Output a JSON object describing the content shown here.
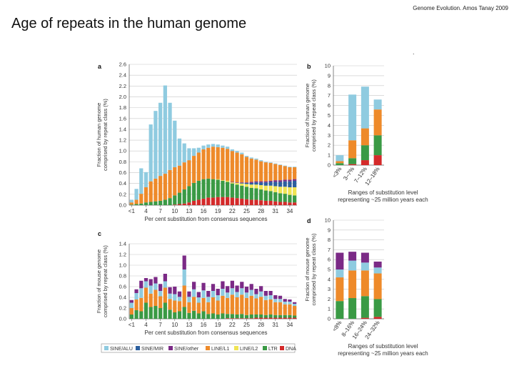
{
  "slide": {
    "title": "Age of repeats in the human genome",
    "credit": "Genome Evolution. Amos Tanay 2009",
    "dot": "."
  },
  "colors": {
    "SINE/ALU": "#8fcbe0",
    "SINE/MIR": "#2c5f9e",
    "SINE/other": "#7b2a86",
    "LINE/L1": "#ee8a2a",
    "LINE/L2": "#f0e454",
    "LTR": "#3a9a45",
    "DNA": "#d42a2a"
  },
  "chart_data": [
    {
      "panel": "a",
      "type": "bar",
      "stacked": true,
      "ylabel": "Fraction of human genome comprised by repeat class (%)",
      "xlabel": "Per cent substitution from consensus sequences",
      "ylim": [
        0,
        2.6
      ],
      "yticks": [
        "0.0",
        "0.2",
        "0.4",
        "0.6",
        "0.8",
        "1.0",
        "1.2",
        "1.4",
        "1.6",
        "1.8",
        "2.0",
        "2.2",
        "2.4",
        "2.6"
      ],
      "xticks": [
        "<1",
        "4",
        "7",
        "10",
        "13",
        "16",
        "19",
        "22",
        "25",
        "28",
        "31",
        "34"
      ],
      "grid": true,
      "series": [
        {
          "key": "DNA",
          "values": [
            0,
            0,
            0,
            0,
            0,
            0,
            0,
            0,
            0,
            0.01,
            0.02,
            0.03,
            0.05,
            0.08,
            0.1,
            0.12,
            0.14,
            0.14,
            0.15,
            0.15,
            0.15,
            0.14,
            0.13,
            0.12,
            0.11,
            0.1,
            0.1,
            0.09,
            0.08,
            0.08,
            0.07,
            0.06,
            0.06,
            0.05,
            0.05
          ]
        },
        {
          "key": "LTR",
          "values": [
            0.01,
            0.02,
            0.03,
            0.05,
            0.06,
            0.07,
            0.08,
            0.1,
            0.13,
            0.17,
            0.21,
            0.26,
            0.3,
            0.33,
            0.35,
            0.36,
            0.35,
            0.34,
            0.32,
            0.3,
            0.28,
            0.26,
            0.25,
            0.24,
            0.23,
            0.22,
            0.21,
            0.2,
            0.19,
            0.18,
            0.17,
            0.16,
            0.15,
            0.14,
            0.13
          ]
        },
        {
          "key": "LINE/L2",
          "values": [
            0,
            0,
            0,
            0,
            0,
            0,
            0,
            0,
            0,
            0,
            0,
            0,
            0,
            0,
            0,
            0,
            0,
            0,
            0.01,
            0.01,
            0.02,
            0.02,
            0.03,
            0.04,
            0.05,
            0.06,
            0.07,
            0.08,
            0.09,
            0.1,
            0.11,
            0.12,
            0.13,
            0.14,
            0.15
          ]
        },
        {
          "key": "SINE/MIR",
          "values": [
            0,
            0,
            0,
            0,
            0,
            0,
            0,
            0,
            0,
            0,
            0,
            0,
            0,
            0,
            0,
            0,
            0,
            0,
            0,
            0,
            0,
            0,
            0,
            0.01,
            0.02,
            0.03,
            0.04,
            0.05,
            0.06,
            0.07,
            0.08,
            0.09,
            0.1,
            0.11,
            0.12
          ]
        },
        {
          "key": "SINE/other",
          "values": [
            0,
            0,
            0,
            0,
            0,
            0,
            0,
            0,
            0,
            0,
            0,
            0,
            0,
            0,
            0,
            0,
            0,
            0,
            0,
            0,
            0,
            0.01,
            0.01,
            0.01,
            0.01,
            0.02,
            0.02,
            0.02,
            0.02,
            0.02,
            0.03,
            0.03,
            0.03,
            0.03,
            0.03
          ]
        },
        {
          "key": "LINE/L1",
          "values": [
            0.04,
            0.08,
            0.18,
            0.28,
            0.38,
            0.42,
            0.46,
            0.48,
            0.52,
            0.52,
            0.5,
            0.5,
            0.48,
            0.5,
            0.52,
            0.55,
            0.57,
            0.6,
            0.59,
            0.6,
            0.59,
            0.57,
            0.55,
            0.52,
            0.47,
            0.43,
            0.4,
            0.37,
            0.35,
            0.33,
            0.3,
            0.28,
            0.25,
            0.23,
            0.22
          ]
        },
        {
          "key": "SINE/ALU",
          "values": [
            0.05,
            0.2,
            0.47,
            0.28,
            1.05,
            1.25,
            1.35,
            1.63,
            1.24,
            0.86,
            0.5,
            0.35,
            0.22,
            0.14,
            0.09,
            0.07,
            0.06,
            0.05,
            0.05,
            0.04,
            0.04,
            0.03,
            0.03,
            0.03,
            0.02,
            0.02,
            0.02,
            0.02,
            0.01,
            0.01,
            0.01,
            0.01,
            0.01,
            0.01,
            0.01
          ]
        }
      ]
    },
    {
      "panel": "b",
      "type": "bar",
      "stacked": true,
      "ylabel": "Fraction of human genome comprised by repeat class (%)",
      "xlabel": "Ranges of substitution level representing ~25 million years each",
      "ylim": [
        0,
        10
      ],
      "yticks": [
        "0",
        "1",
        "2",
        "3",
        "4",
        "5",
        "6",
        "7",
        "8",
        "9",
        "10"
      ],
      "categories": [
        "<3%",
        "3–7%",
        "7–12%",
        "12–18%"
      ],
      "grid": true,
      "series": [
        {
          "key": "DNA",
          "values": [
            0,
            0.1,
            0.5,
            1.0
          ]
        },
        {
          "key": "LTR",
          "values": [
            0.2,
            0.6,
            1.5,
            2.0
          ]
        },
        {
          "key": "LINE/L1",
          "values": [
            0.2,
            1.8,
            1.7,
            2.6
          ]
        },
        {
          "key": "SINE/ALU",
          "values": [
            0.6,
            4.6,
            4.2,
            1.0
          ]
        }
      ]
    },
    {
      "panel": "c",
      "type": "bar",
      "stacked": true,
      "ylabel": "Fraction of mouse genome comprised by repeat class (%)",
      "xlabel": "Per cent substitution from consensus sequences",
      "ylim": [
        0,
        1.4
      ],
      "yticks": [
        "0.0",
        "0.2",
        "0.4",
        "0.6",
        "0.8",
        "1.0",
        "1.2",
        "1.4"
      ],
      "xticks": [
        "<1",
        "4",
        "7",
        "10",
        "13",
        "16",
        "19",
        "22",
        "25",
        "28",
        "31",
        "34"
      ],
      "grid": true,
      "series": [
        {
          "key": "DNA",
          "values": [
            0,
            0,
            0,
            0,
            0,
            0,
            0,
            0,
            0,
            0,
            0,
            0,
            0,
            0,
            0,
            0,
            0,
            0,
            0,
            0,
            0.01,
            0.01,
            0.01,
            0.01,
            0.01,
            0.01,
            0.02,
            0.02,
            0.02,
            0.02,
            0.02,
            0.02,
            0.02,
            0.02,
            0.02
          ]
        },
        {
          "key": "LTR",
          "values": [
            0.08,
            0.16,
            0.14,
            0.3,
            0.22,
            0.24,
            0.2,
            0.3,
            0.17,
            0.12,
            0.14,
            0.22,
            0.11,
            0.15,
            0.1,
            0.14,
            0.09,
            0.1,
            0.08,
            0.1,
            0.08,
            0.08,
            0.07,
            0.08,
            0.06,
            0.07,
            0.06,
            0.06,
            0.05,
            0.06,
            0.05,
            0.05,
            0.05,
            0.05,
            0.04
          ]
        },
        {
          "key": "LINE/L1",
          "values": [
            0.12,
            0.2,
            0.25,
            0.28,
            0.25,
            0.3,
            0.22,
            0.28,
            0.2,
            0.22,
            0.19,
            0.4,
            0.2,
            0.26,
            0.2,
            0.25,
            0.22,
            0.3,
            0.26,
            0.33,
            0.3,
            0.36,
            0.32,
            0.36,
            0.32,
            0.35,
            0.3,
            0.33,
            0.28,
            0.28,
            0.24,
            0.24,
            0.2,
            0.2,
            0.18
          ]
        },
        {
          "key": "SINE/ALU",
          "values": [
            0.1,
            0.12,
            0.18,
            0.12,
            0.15,
            0.12,
            0.1,
            0.12,
            0.1,
            0.12,
            0.08,
            0.3,
            0.1,
            0.14,
            0.1,
            0.14,
            0.1,
            0.12,
            0.1,
            0.13,
            0.1,
            0.12,
            0.1,
            0.12,
            0.1,
            0.11,
            0.08,
            0.1,
            0.08,
            0.08,
            0.06,
            0.06,
            0.05,
            0.05,
            0.04
          ]
        },
        {
          "key": "SINE/other",
          "values": [
            0.05,
            0.07,
            0.14,
            0.06,
            0.12,
            0.12,
            0.13,
            0.14,
            0.12,
            0.14,
            0.1,
            0.26,
            0.1,
            0.14,
            0.1,
            0.14,
            0.11,
            0.13,
            0.12,
            0.14,
            0.12,
            0.14,
            0.12,
            0.12,
            0.11,
            0.11,
            0.1,
            0.1,
            0.09,
            0.08,
            0.07,
            0.06,
            0.05,
            0.04,
            0.03
          ]
        }
      ]
    },
    {
      "panel": "d",
      "type": "bar",
      "stacked": true,
      "ylabel": "Fraction of mouse genome comprised by repeat class (%)",
      "xlabel": "Ranges of substitution level representing ~25 million years each",
      "ylim": [
        0,
        10
      ],
      "yticks": [
        "0",
        "1",
        "2",
        "3",
        "4",
        "5",
        "6",
        "7",
        "8",
        "9",
        "10"
      ],
      "categories": [
        "<8%",
        "8–16%",
        "16–24%",
        "24–32%"
      ],
      "grid": true,
      "series": [
        {
          "key": "DNA",
          "values": [
            0,
            0,
            0.1,
            0.2
          ]
        },
        {
          "key": "LTR",
          "values": [
            1.8,
            2.1,
            2.2,
            1.8
          ]
        },
        {
          "key": "LINE/L1",
          "values": [
            2.4,
            2.8,
            2.6,
            2.6
          ]
        },
        {
          "key": "SINE/ALU",
          "values": [
            0.8,
            1.0,
            0.8,
            0.6
          ]
        },
        {
          "key": "SINE/other",
          "values": [
            1.7,
            0.9,
            1.0,
            0.6
          ]
        }
      ]
    }
  ],
  "legend": [
    {
      "key": "SINE/ALU",
      "label": "SINE/ALU"
    },
    {
      "key": "SINE/MIR",
      "label": "SINE/MIR"
    },
    {
      "key": "SINE/other",
      "label": "SINE/other"
    },
    {
      "key": "LINE/L1",
      "label": "LINE/L1"
    },
    {
      "key": "LINE/L2",
      "label": "LINE/L2"
    },
    {
      "key": "LTR",
      "label": "LTR"
    },
    {
      "key": "DNA",
      "label": "DNA"
    }
  ]
}
